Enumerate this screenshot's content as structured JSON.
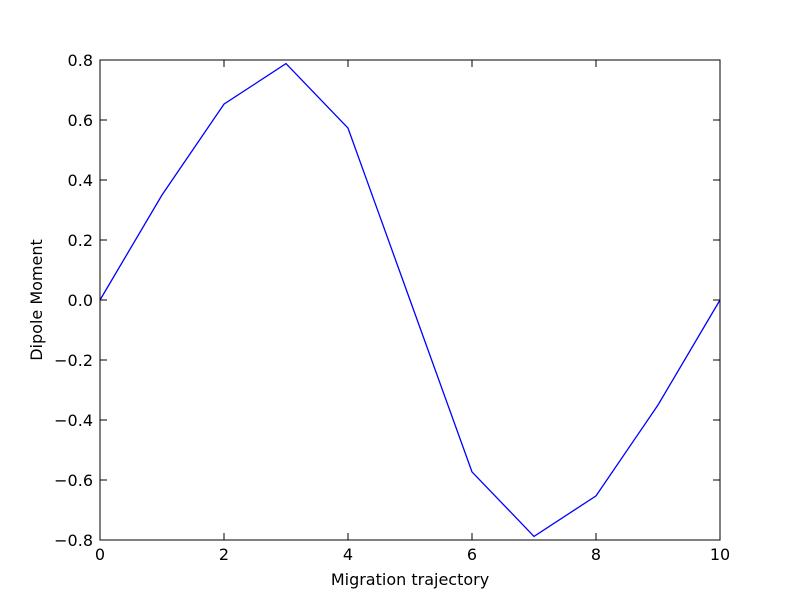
{
  "chart_data": {
    "type": "line",
    "title": "",
    "xlabel": "Migration trajectory",
    "ylabel": "Dipole Moment",
    "xlim": [
      0,
      10
    ],
    "ylim": [
      -0.8,
      0.8
    ],
    "x_ticks": [
      0,
      2,
      4,
      6,
      8,
      10
    ],
    "x_tick_labels": [
      "0",
      "2",
      "4",
      "6",
      "8",
      "10"
    ],
    "y_ticks": [
      -0.8,
      -0.6,
      -0.4,
      -0.2,
      0.0,
      0.2,
      0.4,
      0.6,
      0.8
    ],
    "y_tick_labels": [
      "−0.8",
      "−0.6",
      "−0.4",
      "−0.2",
      "0.0",
      "0.2",
      "0.4",
      "0.6",
      "0.8"
    ],
    "grid": false,
    "legend": "none",
    "series": [
      {
        "color": "#0000ff",
        "x": [
          0,
          1,
          2,
          3,
          4,
          5,
          6,
          7,
          8,
          9,
          10
        ],
        "y": [
          0.0,
          0.35,
          0.653,
          0.788,
          0.573,
          0.0,
          -0.573,
          -0.788,
          -0.653,
          -0.35,
          0.0
        ]
      }
    ]
  }
}
